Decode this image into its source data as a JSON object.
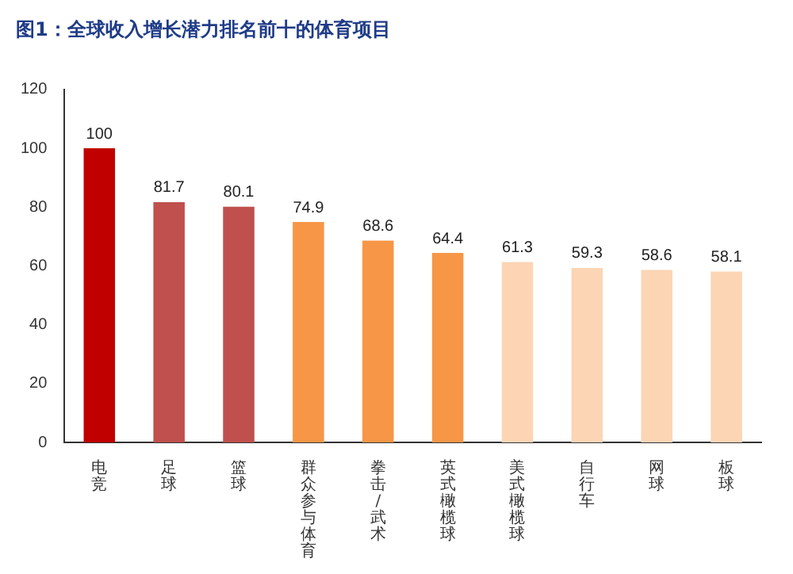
{
  "chart_data": {
    "type": "bar",
    "title": "图1：全球收入增长潜力排名前十的体育项目",
    "categories": [
      "电竞",
      "足球",
      "篮球",
      "群众参与体育",
      "拳击/武术",
      "英式橄榄球",
      "美式橄榄球",
      "自行车",
      "网球",
      "板球"
    ],
    "values": [
      100,
      81.7,
      80.1,
      74.9,
      68.6,
      64.4,
      61.3,
      59.3,
      58.6,
      58.1
    ],
    "colors": [
      "#c00000",
      "#c0504d",
      "#c0504d",
      "#f79646",
      "#f79646",
      "#f79646",
      "#fcd5b5",
      "#fcd5b5",
      "#fcd5b5",
      "#fcd5b5"
    ],
    "ylim": [
      0,
      120
    ],
    "yticks": [
      0,
      20,
      40,
      60,
      80,
      100,
      120
    ],
    "grid": false,
    "legend": false,
    "data_labels": true
  }
}
